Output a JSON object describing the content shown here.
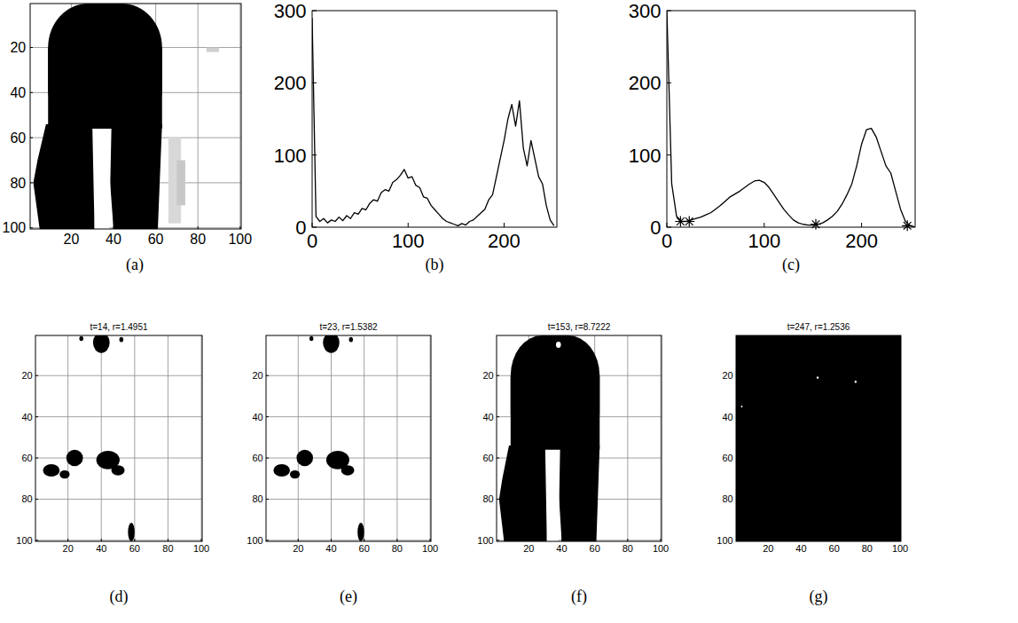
{
  "chart_data": [
    {
      "type": "image",
      "caption": "(a)",
      "xlim": [
        0.5,
        100.5
      ],
      "ylim": [
        0.5,
        100.5
      ],
      "xticks": [
        20,
        40,
        60,
        80,
        100
      ],
      "yticks": [
        20,
        40,
        60,
        80,
        100
      ],
      "grid": true
    },
    {
      "type": "line",
      "caption": "(b)",
      "xlim": [
        0,
        255
      ],
      "ylim": [
        0,
        300
      ],
      "xticks": [
        0,
        100,
        200
      ],
      "yticks": [
        0,
        100,
        200,
        300
      ],
      "grid": false,
      "series": [
        {
          "type": "line",
          "color": "#000000",
          "x": [
            0,
            4,
            8,
            12,
            16,
            20,
            24,
            28,
            32,
            36,
            40,
            44,
            48,
            52,
            56,
            60,
            64,
            68,
            72,
            76,
            80,
            84,
            88,
            92,
            96,
            100,
            104,
            108,
            112,
            116,
            120,
            124,
            128,
            132,
            136,
            140,
            144,
            148,
            152,
            156,
            160,
            164,
            168,
            172,
            176,
            180,
            184,
            188,
            192,
            196,
            200,
            204,
            208,
            212,
            216,
            220,
            224,
            228,
            232,
            236,
            240,
            244,
            248,
            252
          ],
          "values": [
            290,
            15,
            8,
            12,
            6,
            10,
            8,
            14,
            9,
            16,
            12,
            20,
            18,
            26,
            24,
            33,
            38,
            36,
            48,
            52,
            50,
            62,
            66,
            72,
            80,
            68,
            70,
            58,
            55,
            42,
            40,
            30,
            24,
            18,
            12,
            8,
            6,
            4,
            2,
            5,
            3,
            8,
            10,
            15,
            20,
            25,
            38,
            45,
            70,
            95,
            120,
            150,
            170,
            140,
            175,
            110,
            85,
            120,
            95,
            70,
            60,
            30,
            10,
            2
          ]
        }
      ]
    },
    {
      "type": "line",
      "caption": "(c)",
      "xlim": [
        0,
        255
      ],
      "ylim": [
        0,
        300
      ],
      "xticks": [
        0,
        100,
        200
      ],
      "yticks": [
        0,
        100,
        200,
        300
      ],
      "grid": false,
      "series": [
        {
          "type": "line",
          "color": "#000000",
          "x": [
            0,
            5,
            10,
            15,
            20,
            25,
            30,
            35,
            40,
            45,
            50,
            55,
            60,
            65,
            70,
            75,
            80,
            85,
            90,
            95,
            100,
            105,
            110,
            115,
            120,
            125,
            130,
            135,
            140,
            145,
            150,
            155,
            160,
            165,
            170,
            175,
            180,
            185,
            190,
            195,
            200,
            205,
            210,
            215,
            220,
            225,
            230,
            235,
            240,
            245,
            250,
            255
          ],
          "values": [
            300,
            60,
            15,
            8,
            8,
            10,
            12,
            14,
            17,
            20,
            25,
            30,
            36,
            42,
            46,
            50,
            55,
            60,
            64,
            65,
            62,
            55,
            45,
            35,
            25,
            17,
            10,
            6,
            4,
            3,
            3,
            4,
            6,
            10,
            15,
            22,
            32,
            45,
            60,
            85,
            115,
            135,
            137,
            125,
            105,
            85,
            75,
            50,
            25,
            8,
            2,
            0
          ]
        },
        {
          "type": "scatter",
          "marker": "star",
          "color": "#000000",
          "x": [
            14,
            23,
            153,
            247
          ],
          "values": [
            8,
            8,
            4,
            2
          ]
        }
      ]
    },
    {
      "type": "image",
      "title": "t=14, r=1.4951",
      "caption": "(d)",
      "xlim": [
        0.5,
        100.5
      ],
      "ylim": [
        0.5,
        100.5
      ],
      "xticks": [
        20,
        40,
        60,
        80,
        100
      ],
      "yticks": [
        20,
        40,
        60,
        80,
        100
      ],
      "grid": true
    },
    {
      "type": "image",
      "title": "t=23, r=1.5382",
      "caption": "(e)",
      "xlim": [
        0.5,
        100.5
      ],
      "ylim": [
        0.5,
        100.5
      ],
      "xticks": [
        20,
        40,
        60,
        80,
        100
      ],
      "yticks": [
        20,
        40,
        60,
        80,
        100
      ],
      "grid": true
    },
    {
      "type": "image",
      "title": "t=153, r=8.7222",
      "caption": "(f)",
      "xlim": [
        0.5,
        100.5
      ],
      "ylim": [
        0.5,
        100.5
      ],
      "xticks": [
        20,
        40,
        60,
        80,
        100
      ],
      "yticks": [
        20,
        40,
        60,
        80,
        100
      ],
      "grid": true
    },
    {
      "type": "image",
      "title": "t=247, r=1.2536",
      "caption": "(g)",
      "xlim": [
        0.5,
        100.5
      ],
      "ylim": [
        0.5,
        100.5
      ],
      "xticks": [
        20,
        40,
        60,
        80,
        100
      ],
      "yticks": [
        20,
        40,
        60,
        80,
        100
      ],
      "grid": true
    }
  ]
}
